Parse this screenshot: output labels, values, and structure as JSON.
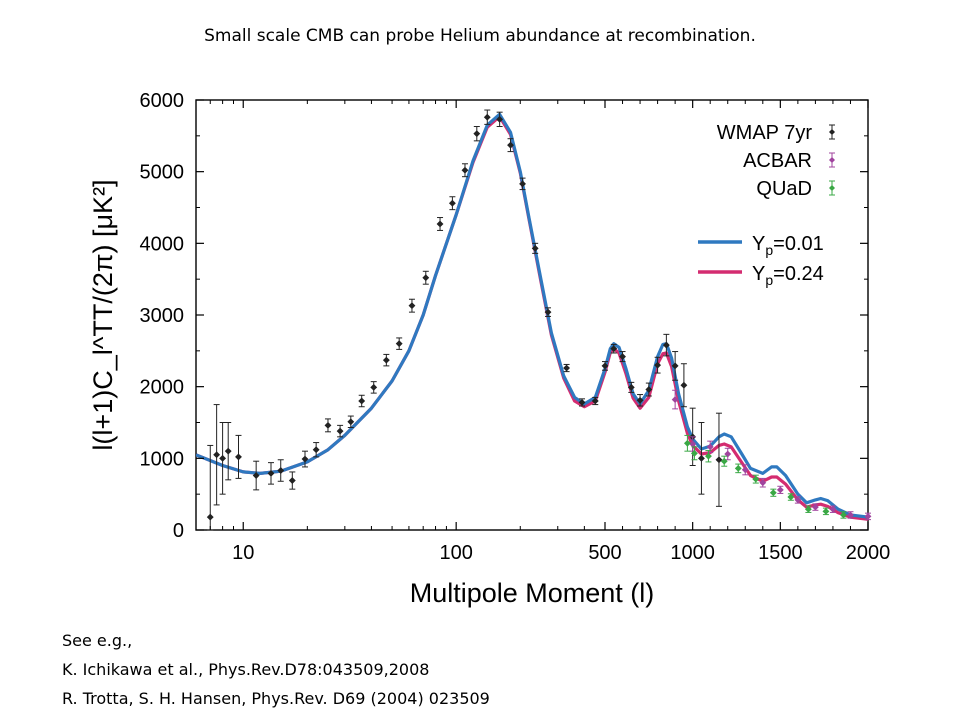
{
  "slide_title": "Small scale CMB can probe Helium abundance at recombination.",
  "references": {
    "heading": "See e.g.,",
    "items": [
      "K. Ichikawa et al., Phys.Rev.D78:043509,2008",
      "R. Trotta, S. H. Hansen, Phys.Rev. D69 (2004) 023509"
    ]
  },
  "chart_data": {
    "type": "scatter",
    "xlabel": "Multipole Moment (l)",
    "ylabel": "l(l+1)C_l^TT/(2π) [μK²]",
    "x_scale": "log below l=500, linear from 500 to 2000",
    "xlim": [
      6,
      2000
    ],
    "ylim": [
      0,
      6000
    ],
    "x_ticks": [
      10,
      100,
      500,
      1000,
      1500,
      2000
    ],
    "y_ticks": [
      0,
      1000,
      2000,
      3000,
      4000,
      5000,
      6000
    ],
    "grid": false,
    "legend_position": "top-right",
    "series": [
      {
        "name": "WMAP 7yr",
        "kind": "points",
        "color": "#222222",
        "points": [
          {
            "x": 7,
            "y": 180,
            "err": 1000
          },
          {
            "x": 7.5,
            "y": 1050,
            "err": 700
          },
          {
            "x": 8,
            "y": 1000,
            "err": 500
          },
          {
            "x": 8.5,
            "y": 1100,
            "err": 400
          },
          {
            "x": 9.5,
            "y": 1020,
            "err": 300
          },
          {
            "x": 11.5,
            "y": 760,
            "err": 200
          },
          {
            "x": 13.5,
            "y": 790,
            "err": 150
          },
          {
            "x": 15,
            "y": 830,
            "err": 150
          },
          {
            "x": 17,
            "y": 690,
            "err": 120
          },
          {
            "x": 19.5,
            "y": 990,
            "err": 110
          },
          {
            "x": 22,
            "y": 1120,
            "err": 100
          },
          {
            "x": 25,
            "y": 1460,
            "err": 90
          },
          {
            "x": 28.5,
            "y": 1380,
            "err": 80
          },
          {
            "x": 32,
            "y": 1510,
            "err": 80
          },
          {
            "x": 36,
            "y": 1800,
            "err": 80
          },
          {
            "x": 41,
            "y": 1990,
            "err": 80
          },
          {
            "x": 47,
            "y": 2370,
            "err": 80
          },
          {
            "x": 54,
            "y": 2600,
            "err": 80
          },
          {
            "x": 62,
            "y": 3130,
            "err": 90
          },
          {
            "x": 72,
            "y": 3520,
            "err": 90
          },
          {
            "x": 84,
            "y": 4270,
            "err": 90
          },
          {
            "x": 96,
            "y": 4560,
            "err": 90
          },
          {
            "x": 110,
            "y": 5020,
            "err": 90
          },
          {
            "x": 125,
            "y": 5530,
            "err": 100
          },
          {
            "x": 140,
            "y": 5760,
            "err": 100
          },
          {
            "x": 160,
            "y": 5730,
            "err": 100
          },
          {
            "x": 180,
            "y": 5370,
            "err": 90
          },
          {
            "x": 205,
            "y": 4830,
            "err": 80
          },
          {
            "x": 235,
            "y": 3930,
            "err": 70
          },
          {
            "x": 270,
            "y": 3040,
            "err": 60
          },
          {
            "x": 330,
            "y": 2260,
            "err": 50
          },
          {
            "x": 390,
            "y": 1780,
            "err": 50
          },
          {
            "x": 450,
            "y": 1800,
            "err": 50
          },
          {
            "x": 500,
            "y": 2290,
            "err": 60
          },
          {
            "x": 550,
            "y": 2530,
            "err": 60
          },
          {
            "x": 600,
            "y": 2420,
            "err": 70
          },
          {
            "x": 650,
            "y": 1990,
            "err": 70
          },
          {
            "x": 700,
            "y": 1810,
            "err": 80
          },
          {
            "x": 750,
            "y": 1960,
            "err": 90
          },
          {
            "x": 800,
            "y": 2300,
            "err": 110
          },
          {
            "x": 850,
            "y": 2580,
            "err": 150
          },
          {
            "x": 900,
            "y": 2290,
            "err": 200
          },
          {
            "x": 950,
            "y": 2020,
            "err": 300
          },
          {
            "x": 1000,
            "y": 1300,
            "err": 400
          },
          {
            "x": 1050,
            "y": 1000,
            "err": 500
          },
          {
            "x": 1150,
            "y": 980,
            "err": 650
          }
        ]
      },
      {
        "name": "ACBAR",
        "kind": "points",
        "color": "#a0449e",
        "points": [
          {
            "x": 900,
            "y": 1820,
            "err": 130
          },
          {
            "x": 1000,
            "y": 1200,
            "err": 100
          },
          {
            "x": 1100,
            "y": 1160,
            "err": 80
          },
          {
            "x": 1200,
            "y": 1060,
            "err": 80
          },
          {
            "x": 1300,
            "y": 840,
            "err": 70
          },
          {
            "x": 1400,
            "y": 660,
            "err": 60
          },
          {
            "x": 1500,
            "y": 560,
            "err": 50
          },
          {
            "x": 1600,
            "y": 420,
            "err": 45
          },
          {
            "x": 1700,
            "y": 320,
            "err": 45
          },
          {
            "x": 1800,
            "y": 290,
            "err": 45
          },
          {
            "x": 1900,
            "y": 210,
            "err": 45
          },
          {
            "x": 2000,
            "y": 190,
            "err": 45
          }
        ]
      },
      {
        "name": "QUaD",
        "kind": "points",
        "color": "#3aa845",
        "points": [
          {
            "x": 970,
            "y": 1210,
            "err": 110
          },
          {
            "x": 1010,
            "y": 1070,
            "err": 90
          },
          {
            "x": 1090,
            "y": 1030,
            "err": 80
          },
          {
            "x": 1180,
            "y": 960,
            "err": 70
          },
          {
            "x": 1260,
            "y": 860,
            "err": 60
          },
          {
            "x": 1360,
            "y": 710,
            "err": 55
          },
          {
            "x": 1460,
            "y": 520,
            "err": 50
          },
          {
            "x": 1560,
            "y": 460,
            "err": 45
          },
          {
            "x": 1660,
            "y": 290,
            "err": 45
          },
          {
            "x": 1760,
            "y": 260,
            "err": 45
          },
          {
            "x": 1860,
            "y": 210,
            "err": 45
          }
        ]
      },
      {
        "name": "Y_p=0.01",
        "legend_main": "Y",
        "legend_sub": "p",
        "legend_value": "=0.01",
        "kind": "line",
        "color": "#2f79c0",
        "points": [
          [
            6,
            1050
          ],
          [
            8,
            900
          ],
          [
            10,
            810
          ],
          [
            12,
            790
          ],
          [
            15,
            820
          ],
          [
            20,
            950
          ],
          [
            25,
            1120
          ],
          [
            30,
            1320
          ],
          [
            40,
            1700
          ],
          [
            50,
            2080
          ],
          [
            60,
            2500
          ],
          [
            70,
            3000
          ],
          [
            80,
            3550
          ],
          [
            100,
            4400
          ],
          [
            120,
            5150
          ],
          [
            140,
            5650
          ],
          [
            160,
            5800
          ],
          [
            180,
            5550
          ],
          [
            200,
            5000
          ],
          [
            220,
            4350
          ],
          [
            250,
            3500
          ],
          [
            280,
            2750
          ],
          [
            320,
            2150
          ],
          [
            360,
            1850
          ],
          [
            400,
            1760
          ],
          [
            450,
            1850
          ],
          [
            500,
            2250
          ],
          [
            530,
            2530
          ],
          [
            550,
            2600
          ],
          [
            580,
            2550
          ],
          [
            620,
            2250
          ],
          [
            660,
            1900
          ],
          [
            700,
            1760
          ],
          [
            750,
            1950
          ],
          [
            800,
            2420
          ],
          [
            830,
            2590
          ],
          [
            850,
            2600
          ],
          [
            880,
            2400
          ],
          [
            920,
            1900
          ],
          [
            970,
            1440
          ],
          [
            1000,
            1270
          ],
          [
            1050,
            1130
          ],
          [
            1100,
            1170
          ],
          [
            1150,
            1300
          ],
          [
            1180,
            1340
          ],
          [
            1220,
            1300
          ],
          [
            1280,
            1060
          ],
          [
            1330,
            860
          ],
          [
            1400,
            790
          ],
          [
            1450,
            880
          ],
          [
            1480,
            880
          ],
          [
            1530,
            760
          ],
          [
            1600,
            500
          ],
          [
            1650,
            380
          ],
          [
            1700,
            420
          ],
          [
            1730,
            440
          ],
          [
            1770,
            410
          ],
          [
            1830,
            290
          ],
          [
            1900,
            210
          ],
          [
            2000,
            180
          ]
        ]
      },
      {
        "name": "Y_p=0.24",
        "legend_main": "Y",
        "legend_sub": "p",
        "legend_value": "=0.24",
        "kind": "line",
        "color": "#d42c70",
        "points": [
          [
            6,
            1050
          ],
          [
            8,
            900
          ],
          [
            10,
            810
          ],
          [
            12,
            790
          ],
          [
            15,
            820
          ],
          [
            20,
            950
          ],
          [
            25,
            1120
          ],
          [
            30,
            1320
          ],
          [
            40,
            1700
          ],
          [
            50,
            2080
          ],
          [
            60,
            2500
          ],
          [
            70,
            3000
          ],
          [
            80,
            3550
          ],
          [
            100,
            4400
          ],
          [
            120,
            5130
          ],
          [
            140,
            5620
          ],
          [
            160,
            5770
          ],
          [
            180,
            5520
          ],
          [
            200,
            4980
          ],
          [
            220,
            4330
          ],
          [
            250,
            3470
          ],
          [
            280,
            2720
          ],
          [
            320,
            2120
          ],
          [
            360,
            1800
          ],
          [
            400,
            1720
          ],
          [
            450,
            1800
          ],
          [
            500,
            2200
          ],
          [
            530,
            2480
          ],
          [
            550,
            2530
          ],
          [
            580,
            2470
          ],
          [
            620,
            2180
          ],
          [
            660,
            1840
          ],
          [
            700,
            1700
          ],
          [
            750,
            1850
          ],
          [
            800,
            2320
          ],
          [
            830,
            2460
          ],
          [
            850,
            2470
          ],
          [
            880,
            2280
          ],
          [
            920,
            1800
          ],
          [
            970,
            1350
          ],
          [
            1000,
            1180
          ],
          [
            1050,
            1060
          ],
          [
            1100,
            1080
          ],
          [
            1150,
            1180
          ],
          [
            1180,
            1200
          ],
          [
            1220,
            1160
          ],
          [
            1280,
            940
          ],
          [
            1330,
            760
          ],
          [
            1400,
            680
          ],
          [
            1450,
            740
          ],
          [
            1480,
            740
          ],
          [
            1530,
            640
          ],
          [
            1600,
            420
          ],
          [
            1650,
            320
          ],
          [
            1700,
            350
          ],
          [
            1730,
            360
          ],
          [
            1770,
            330
          ],
          [
            1830,
            240
          ],
          [
            1900,
            180
          ],
          [
            2000,
            150
          ]
        ]
      }
    ]
  }
}
